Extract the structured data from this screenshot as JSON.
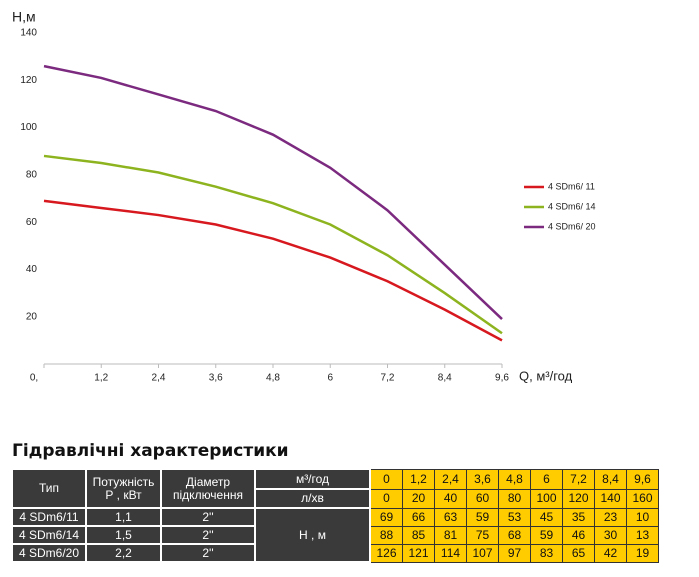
{
  "chart_data": {
    "type": "line",
    "y_label": "Н,м",
    "x_label": "Q, м³/год",
    "x": [
      0,
      1.2,
      2.4,
      3.6,
      4.8,
      6,
      7.2,
      8.4,
      9.6
    ],
    "xlim": [
      0,
      9.6
    ],
    "ylim": [
      0,
      140
    ],
    "xticks": [
      {
        "value": 0,
        "label": "0,"
      },
      {
        "value": 1.2,
        "label": "1,2"
      },
      {
        "value": 2.4,
        "label": "2,4"
      },
      {
        "value": 3.6,
        "label": "3,6"
      },
      {
        "value": 4.8,
        "label": "4,8"
      },
      6,
      {
        "value": 7.2,
        "label": "7,2"
      },
      {
        "value": 8.4,
        "label": "8,4"
      },
      {
        "value": 9.6,
        "label": "9,6"
      }
    ],
    "yticks": [
      20,
      40,
      60,
      80,
      100,
      120,
      140
    ],
    "legend": "right",
    "series": [
      {
        "name": "4 SDm6/ 11",
        "color": "#d7191f",
        "values": [
          69,
          66,
          63,
          59,
          53,
          45,
          35,
          23,
          10
        ]
      },
      {
        "name": "4 SDm6/ 14",
        "color": "#8db41f",
        "values": [
          88,
          85,
          81,
          75,
          68,
          59,
          46,
          30,
          13
        ]
      },
      {
        "name": "4 SDm6/ 20",
        "color": "#7b2a7f",
        "values": [
          126,
          121,
          114,
          107,
          97,
          83,
          65,
          42,
          19
        ]
      }
    ]
  },
  "table": {
    "title": "Гідравлічні характеристики",
    "headers": [
      "Тип",
      "Потужність\nР , кВт",
      "Діаметр\nпідключення"
    ],
    "flow_m3_label": "м³/год",
    "flow_m3": [
      "0",
      "1,2",
      "2,4",
      "3,6",
      "4,8",
      "6",
      "7,2",
      "8,4",
      "9,6"
    ],
    "flow_l_label": "л/хв",
    "flow_l": [
      0,
      20,
      40,
      60,
      80,
      100,
      120,
      140,
      160
    ],
    "head_label": "Н , м",
    "rows": [
      [
        "4 SDm6/11",
        "1,1",
        "2''"
      ],
      [
        "4 SDm6/14",
        "1,5",
        "2''"
      ],
      [
        "4 SDm6/20",
        "2,2",
        "2''"
      ]
    ]
  }
}
